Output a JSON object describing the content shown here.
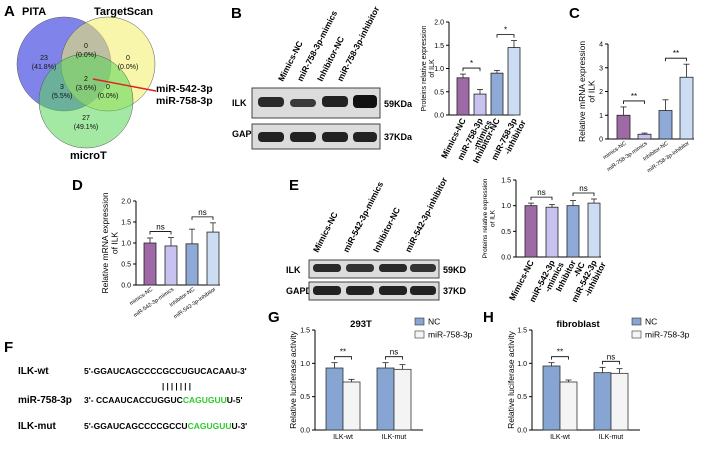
{
  "panels": {
    "A": {
      "letter": "A",
      "sets": [
        "PITA",
        "TargetScan",
        "microT"
      ],
      "regions": {
        "pita_only": [
          "23",
          "(41.8%)"
        ],
        "pita_target": [
          "0",
          "(0.0%)"
        ],
        "target_only": [
          "0",
          "(0.0%)"
        ],
        "center": [
          "2",
          "(3.6%)"
        ],
        "pita_microt": [
          "3",
          "(5.5%)"
        ],
        "target_microt": [
          "0",
          "(0.0%)"
        ],
        "microt_only": [
          "27",
          "(49.1%)"
        ]
      },
      "callout": [
        "miR-542-3p",
        "miR-758-3p"
      ]
    },
    "B": {
      "letter": "B",
      "lanes": [
        "Mimics-NC",
        "miR-758-3p-mimics",
        "Inhibitor-NC",
        "miR-758-3p-inhibitor"
      ],
      "bands": [
        "ILK",
        "GAPDH"
      ],
      "sizes": [
        "59KDa",
        "37KDa"
      ]
    },
    "C": {
      "letter": "C"
    },
    "D": {
      "letter": "D"
    },
    "E": {
      "letter": "E",
      "lanes": [
        "Mimics-NC",
        "miR-542-3p-mimics",
        "Inhibitor-NC",
        "miR-542-3p-inhibitor"
      ],
      "bands": [
        "ILK",
        "GAPDH"
      ],
      "sizes": [
        "59KD",
        "37KD"
      ]
    },
    "F": {
      "letter": "F",
      "rows": [
        {
          "name": "ILK-wt",
          "prefix": "5'-GGAUCAGCCCCGCCUGUCACAAU-3'",
          "hl": "",
          "suffix": ""
        },
        {
          "name": "miR-758-3p",
          "prefix": "3'-  CCAAUCACCUGGUC",
          "hl": "CAGUGUU",
          "suffix": "U-5'"
        },
        {
          "name": "ILK-mut",
          "prefix": "5'-GGAUCAGCCCCGCCU",
          "hl": "CAGUGUU",
          "suffix": "U-3'"
        }
      ],
      "pairs": "| | | | | | |"
    },
    "G": {
      "letter": "G"
    },
    "H": {
      "letter": "H"
    }
  },
  "chart_data": [
    {
      "panel": "B",
      "type": "bar",
      "categories": [
        "Mimics-NC",
        "miR-758-3p -mimics",
        "Inhibitor-NC",
        "miR-758-3p -inhibitor"
      ],
      "values": [
        0.8,
        0.45,
        0.9,
        1.45
      ],
      "errors": [
        0.08,
        0.1,
        0.06,
        0.15
      ],
      "colors": [
        "#9e6aa5",
        "#c7c2ef",
        "#8faad6",
        "#ccdcf2"
      ],
      "ylabel": "Proteins relative expression of ILK",
      "ylim": [
        0,
        2.0
      ],
      "ticks": [
        "0.0",
        "0.5",
        "1.0",
        "1.5",
        "2.0"
      ],
      "significance": [
        {
          "from": 0,
          "to": 1,
          "label": "*"
        },
        {
          "from": 2,
          "to": 3,
          "label": "*"
        }
      ]
    },
    {
      "panel": "C",
      "type": "bar",
      "categories": [
        "mimics-NC",
        "miR-758-3p-mimics",
        "Inhibitor-NC",
        "miR-758-3p-inhibitor"
      ],
      "values": [
        1.0,
        0.2,
        1.2,
        2.6
      ],
      "errors": [
        0.35,
        0.05,
        0.45,
        0.55
      ],
      "colors": [
        "#9e6aa5",
        "#c7c2ef",
        "#8faad6",
        "#ccdcf2"
      ],
      "ylabel": "Relative mRNA expression of ILK",
      "ylim": [
        0,
        4
      ],
      "ticks": [
        "0",
        "1",
        "2",
        "3",
        "4"
      ],
      "significance": [
        {
          "from": 0,
          "to": 1,
          "label": "**"
        },
        {
          "from": 2,
          "to": 3,
          "label": "**"
        }
      ]
    },
    {
      "panel": "D",
      "type": "bar",
      "categories": [
        "mimics-NC",
        "miR-542-3p-mimics",
        "Inhibitor-NC",
        "miR-542-3p-inhibitor"
      ],
      "values": [
        1.0,
        0.93,
        0.98,
        1.26
      ],
      "errors": [
        0.12,
        0.2,
        0.35,
        0.22
      ],
      "colors": [
        "#9e6aa5",
        "#c7c2ef",
        "#8faad6",
        "#ccdcf2"
      ],
      "ylabel": "Relative mRNA expression of ILK",
      "ylim": [
        0,
        2.0
      ],
      "ticks": [
        "0.0",
        "0.5",
        "1.0",
        "1.5",
        "2.0"
      ],
      "significance": [
        {
          "from": 0,
          "to": 1,
          "label": "ns"
        },
        {
          "from": 2,
          "to": 3,
          "label": "ns"
        }
      ]
    },
    {
      "panel": "E",
      "type": "bar",
      "categories": [
        "Mimics-NC",
        "miR-542-3p -mimics",
        "Inhibitor -NC",
        "miR-542-3p -inhibitor"
      ],
      "values": [
        1.0,
        0.97,
        1.0,
        1.05
      ],
      "errors": [
        0.05,
        0.05,
        0.1,
        0.08
      ],
      "colors": [
        "#9e6aa5",
        "#c7c2ef",
        "#8faad6",
        "#ccdcf2"
      ],
      "ylabel": "Proteins relative expression of ILK",
      "ylim": [
        0,
        1.5
      ],
      "ticks": [
        "0.0",
        "0.5",
        "1.0",
        "1.5"
      ],
      "significance": [
        {
          "from": 0,
          "to": 1,
          "label": "ns"
        },
        {
          "from": 2,
          "to": 3,
          "label": "ns"
        }
      ]
    },
    {
      "panel": "G",
      "type": "bar",
      "title": "293T",
      "categories": [
        "ILK-wt",
        "ILK-mut"
      ],
      "series": [
        {
          "name": "NC",
          "values": [
            0.93,
            0.93
          ],
          "errors": [
            0.08,
            0.08
          ],
          "color": "#86a5d2"
        },
        {
          "name": "miR-758-3p",
          "values": [
            0.72,
            0.91
          ],
          "errors": [
            0.04,
            0.07
          ],
          "color": "#f4f4f4"
        }
      ],
      "ylabel": "Relative luciferase activity",
      "ylim": [
        0,
        1.5
      ],
      "ticks": [
        "0.0",
        "0.5",
        "1.0",
        "1.5"
      ],
      "significance": [
        {
          "group": 0,
          "label": "**"
        },
        {
          "group": 1,
          "label": "ns"
        }
      ]
    },
    {
      "panel": "H",
      "type": "bar",
      "title": "fibroblast",
      "categories": [
        "ILK-wt",
        "ILK-mut"
      ],
      "series": [
        {
          "name": "NC",
          "values": [
            0.96,
            0.86
          ],
          "errors": [
            0.05,
            0.08
          ],
          "color": "#86a5d2"
        },
        {
          "name": "miR-758-3p",
          "values": [
            0.72,
            0.85
          ],
          "errors": [
            0.03,
            0.07
          ],
          "color": "#f4f4f4"
        }
      ],
      "ylabel": "Relative luciferase activity",
      "ylim": [
        0,
        1.5
      ],
      "ticks": [
        "0.0",
        "0.5",
        "1.0",
        "1.5"
      ],
      "significance": [
        {
          "group": 0,
          "label": "**"
        },
        {
          "group": 1,
          "label": "ns"
        }
      ]
    }
  ]
}
